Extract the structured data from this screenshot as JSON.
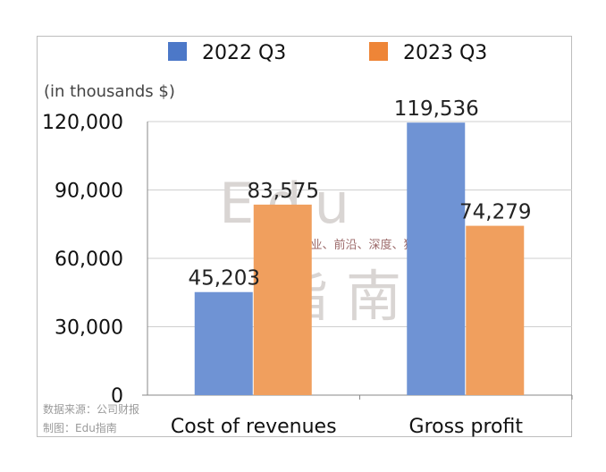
{
  "chart_data": {
    "type": "bar",
    "unit_note": "(in thousands $)",
    "categories": [
      "Cost of revenues",
      "Gross profit"
    ],
    "series": [
      {
        "name": "2022 Q3",
        "values": [
          45203,
          119536
        ],
        "labels": [
          "45,203",
          "119,536"
        ],
        "color": "#6f93d4"
      },
      {
        "name": "2023 Q3",
        "values": [
          83575,
          74279
        ],
        "labels": [
          "83,575",
          "74,279"
        ],
        "color": "#f09f5e"
      }
    ],
    "legend_colors": [
      "#4c78c8",
      "#ee8537"
    ],
    "yticks": [
      "0",
      "30,000",
      "60,000",
      "90,000",
      "120,000"
    ],
    "ylim": [
      0,
      120000
    ],
    "grid": true,
    "legend_position": "top"
  },
  "source": {
    "line1": "数据来源：公司财报",
    "line2": "制图：Edu指南"
  },
  "watermark": {
    "big_top": "Edu",
    "tagline": "教育行业、前沿、深度、独家",
    "big_bottom": "指南"
  }
}
